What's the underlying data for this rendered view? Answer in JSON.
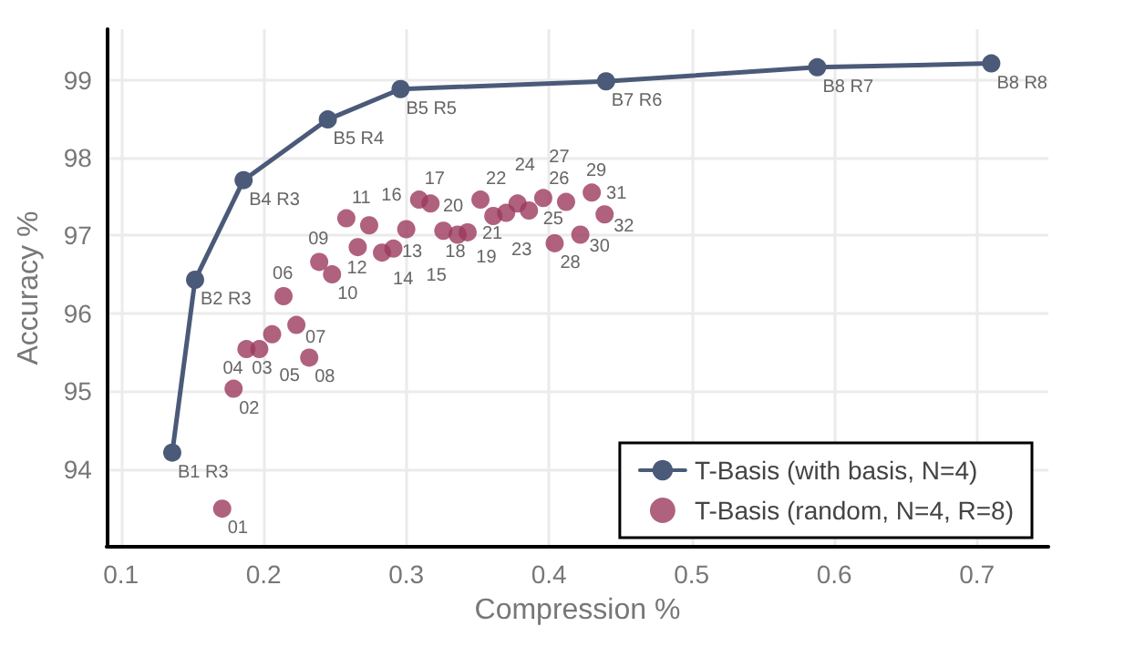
{
  "chart_data": {
    "type": "scatter",
    "xlabel": "Compression %",
    "ylabel": "Accuracy %",
    "xlim": [
      0.09,
      0.75
    ],
    "xticks": [
      0.1,
      0.2,
      0.3,
      0.4,
      0.5,
      0.6,
      0.7
    ],
    "ylim": [
      93,
      99.65
    ],
    "yticks": [
      94,
      95,
      96,
      97,
      98,
      99
    ],
    "grid": true,
    "legend": "bottom right",
    "marker": "circle",
    "series": [
      {
        "name": "T-Basis (with basis, N=4)",
        "type": "line",
        "line_style": "solid",
        "color": "#4a5a78",
        "x": [
          0.136,
          0.152,
          0.186,
          0.245,
          0.296,
          0.44,
          0.588,
          0.71
        ],
        "values": [
          94.21,
          96.43,
          97.71,
          98.49,
          98.88,
          98.98,
          99.16,
          99.21
        ]
      },
      {
        "name": "T-Basis (random, N=4, R=8)",
        "type": "scatter",
        "color": "#9b3a5e",
        "x": [
          0.171,
          0.179,
          0.188,
          0.197,
          0.206,
          0.214,
          0.223,
          0.232,
          0.239,
          0.248,
          0.258,
          0.266,
          0.274,
          0.283,
          0.291,
          0.3,
          0.309,
          0.317,
          0.326,
          0.336,
          0.343,
          0.352,
          0.361,
          0.37,
          0.378,
          0.386,
          0.396,
          0.404,
          0.412,
          0.422,
          0.43,
          0.439
        ],
        "values": [
          93.49,
          95.03,
          95.54,
          95.54,
          95.73,
          96.22,
          95.85,
          95.43,
          96.66,
          96.5,
          97.22,
          96.85,
          97.13,
          96.78,
          96.83,
          97.08,
          97.46,
          97.41,
          97.06,
          97.01,
          97.04,
          97.46,
          97.25,
          97.29,
          97.41,
          97.32,
          97.48,
          96.9,
          97.43,
          97.01,
          97.55,
          97.27
        ]
      }
    ],
    "annotations": [
      {
        "text": "B1 R3",
        "x": 0.136,
        "y": 94.21
      },
      {
        "text": "B2 R3",
        "x": 0.152,
        "y": 96.43
      },
      {
        "text": "B4 R3",
        "x": 0.186,
        "y": 97.71
      },
      {
        "text": "B5 R4",
        "x": 0.245,
        "y": 98.49
      },
      {
        "text": "B5 R5",
        "x": 0.296,
        "y": 98.88
      },
      {
        "text": "B7 R6",
        "x": 0.44,
        "y": 98.98
      },
      {
        "text": "B8 R7",
        "x": 0.588,
        "y": 99.16
      },
      {
        "text": "B8 R8",
        "x": 0.71,
        "y": 99.21
      },
      {
        "text": "01",
        "x": 0.171,
        "y": 93.49
      },
      {
        "text": "02",
        "x": 0.179,
        "y": 95.03
      },
      {
        "text": "03",
        "x": 0.188,
        "y": 95.54
      },
      {
        "text": "04",
        "x": 0.197,
        "y": 95.54
      },
      {
        "text": "05",
        "x": 0.206,
        "y": 95.73
      },
      {
        "text": "06",
        "x": 0.214,
        "y": 96.22
      },
      {
        "text": "07",
        "x": 0.223,
        "y": 95.85
      },
      {
        "text": "08",
        "x": 0.232,
        "y": 95.43
      },
      {
        "text": "09",
        "x": 0.239,
        "y": 96.66
      },
      {
        "text": "10",
        "x": 0.248,
        "y": 96.5
      },
      {
        "text": "11",
        "x": 0.258,
        "y": 97.22
      },
      {
        "text": "12",
        "x": 0.266,
        "y": 96.85
      },
      {
        "text": "13",
        "x": 0.274,
        "y": 97.13
      },
      {
        "text": "14",
        "x": 0.283,
        "y": 96.78
      },
      {
        "text": "15",
        "x": 0.291,
        "y": 96.83
      },
      {
        "text": "16",
        "x": 0.3,
        "y": 97.08
      },
      {
        "text": "17",
        "x": 0.309,
        "y": 97.46
      },
      {
        "text": "18",
        "x": 0.317,
        "y": 97.41
      },
      {
        "text": "19",
        "x": 0.326,
        "y": 97.06
      },
      {
        "text": "20",
        "x": 0.336,
        "y": 97.01
      },
      {
        "text": "21",
        "x": 0.343,
        "y": 97.04
      },
      {
        "text": "22",
        "x": 0.352,
        "y": 97.46
      },
      {
        "text": "23",
        "x": 0.361,
        "y": 97.25
      },
      {
        "text": "24",
        "x": 0.37,
        "y": 97.29
      },
      {
        "text": "25",
        "x": 0.378,
        "y": 97.41
      },
      {
        "text": "26",
        "x": 0.386,
        "y": 97.32
      },
      {
        "text": "27",
        "x": 0.396,
        "y": 97.48
      },
      {
        "text": "28",
        "x": 0.404,
        "y": 96.9
      },
      {
        "text": "29",
        "x": 0.412,
        "y": 97.43
      },
      {
        "text": "30",
        "x": 0.422,
        "y": 97.01
      },
      {
        "text": "31",
        "x": 0.43,
        "y": 97.55
      },
      {
        "text": "32",
        "x": 0.439,
        "y": 97.27
      }
    ]
  }
}
